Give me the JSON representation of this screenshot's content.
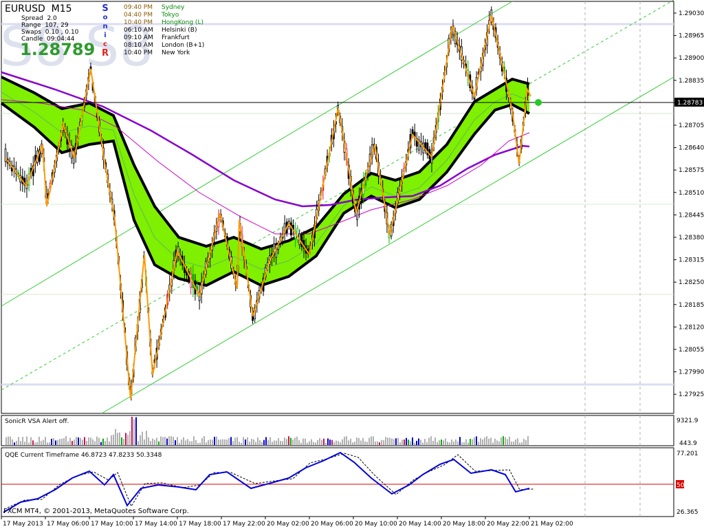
{
  "header": {
    "symbol": "EURUSD",
    "timeframe": "M15",
    "spread_label": "Spread",
    "spread_value": "2.0",
    "range_label": "Range",
    "range_value": "107, 29",
    "swaps_label": "Swaps",
    "swaps_value": "0.10 , 0.10",
    "candle_label": "Candle",
    "candle_value": "09:04:44",
    "big_price": "1.28789",
    "watermark": "S8 S8",
    "side_letters": [
      "S",
      "o",
      "n",
      "i",
      "c",
      "R"
    ]
  },
  "sessions": [
    {
      "time": "09:40 PM",
      "name": "Sydney",
      "status": "open"
    },
    {
      "time": "04:40 PM",
      "name": "Tokyo",
      "status": "open"
    },
    {
      "time": "10:40 PM",
      "name": "HongKong  (L)",
      "status": "open"
    },
    {
      "time": "06:10 AM",
      "name": "Helsinki  (B)",
      "status": "closed"
    },
    {
      "time": "09:10 AM",
      "name": "Frankfurt",
      "status": "closed"
    },
    {
      "time": "08:10 AM",
      "name": "London  (B+1)",
      "status": "closed"
    },
    {
      "time": "10:40 PM",
      "name": "New York",
      "status": "closed"
    }
  ],
  "price_axis": {
    "labels": [
      "1.29030",
      "1.28965",
      "1.28900",
      "1.28835",
      "1.28770",
      "1.28705",
      "1.28640",
      "1.28575",
      "1.28510",
      "1.28445",
      "1.28380",
      "1.28315",
      "1.28250",
      "1.28185",
      "1.28120",
      "1.28055",
      "1.27990",
      "1.27925"
    ],
    "current_price": "1.28783"
  },
  "volume_panel": {
    "title": "SonicR VSA   Alert off.",
    "axis_max": "9321.9",
    "axis_min": "443.9"
  },
  "qqe_panel": {
    "title": "QQE Current Timeframe 46.8723 47.8233 50.3348",
    "axis_max": "77.201",
    "axis_min": "26.365",
    "level_label": "50"
  },
  "footer": {
    "copyright": "FXCM MT4, © 2001-2013, MetaQuotes Software Corp."
  },
  "time_axis": [
    "17 May 2013",
    "17 May 06:00",
    "17 May 10:00",
    "17 May 14:00",
    "17 May 18:00",
    "17 May 22:00",
    "20 May 02:00",
    "20 May 06:00",
    "20 May 10:00",
    "20 May 14:00",
    "20 May 18:00",
    "20 May 22:00",
    "21 May 02:00"
  ],
  "colors": {
    "background": "#ffffff",
    "bull_candle": "#00b000",
    "bear_candle": "#d01050",
    "band_fill": "#7ff000",
    "band_edge": "#000000",
    "ema_purple": "#8800cc",
    "zigzag": "#ff9900",
    "channel": "#33cc33",
    "volume_blue": "#0000cc",
    "qqe_blue": "#0000dd",
    "qqe_level": "#dd0000",
    "price_line": "#000000"
  }
}
